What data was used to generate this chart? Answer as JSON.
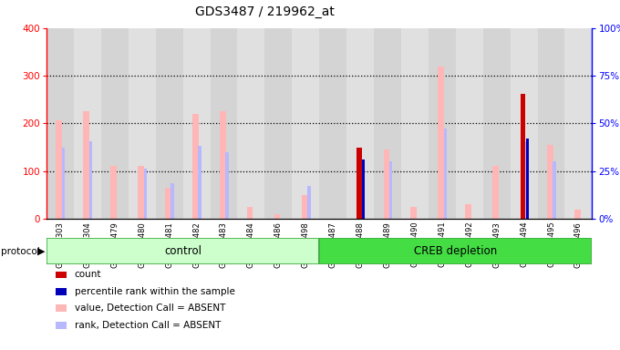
{
  "title": "GDS3487 / 219962_at",
  "samples": [
    "GSM304303",
    "GSM304304",
    "GSM304479",
    "GSM304480",
    "GSM304481",
    "GSM304482",
    "GSM304483",
    "GSM304484",
    "GSM304486",
    "GSM304498",
    "GSM304487",
    "GSM304488",
    "GSM304489",
    "GSM304490",
    "GSM304491",
    "GSM304492",
    "GSM304493",
    "GSM304494",
    "GSM304495",
    "GSM304496"
  ],
  "value_absent": [
    207,
    225,
    110,
    110,
    65,
    220,
    225,
    25,
    10,
    50,
    0,
    0,
    145,
    25,
    320,
    30,
    110,
    0,
    155,
    20
  ],
  "rank_absent": [
    150,
    162,
    0,
    105,
    75,
    152,
    140,
    0,
    0,
    68,
    0,
    0,
    120,
    0,
    190,
    0,
    0,
    160,
    120,
    0
  ],
  "count_red": [
    0,
    0,
    0,
    0,
    0,
    0,
    0,
    0,
    0,
    0,
    0,
    150,
    0,
    0,
    0,
    0,
    0,
    262,
    0,
    0
  ],
  "count_blue": [
    0,
    0,
    0,
    0,
    0,
    0,
    0,
    0,
    0,
    0,
    0,
    125,
    0,
    0,
    0,
    0,
    0,
    168,
    0,
    0
  ],
  "control_count": 10,
  "ylim_left": [
    0,
    400
  ],
  "ylim_right": [
    0,
    100
  ],
  "yticks_left": [
    0,
    100,
    200,
    300,
    400
  ],
  "yticks_right": [
    0,
    25,
    50,
    75,
    100
  ],
  "ytick_labels_right": [
    "0%",
    "25%",
    "50%",
    "75%",
    "100%"
  ],
  "pink": "#ffb6b6",
  "light_blue": "#b8b8ff",
  "dark_red": "#cc0000",
  "dark_blue": "#0000bb",
  "green_ctrl": "#ccffcc",
  "green_creb": "#44dd44",
  "col_bg_even": "#d4d4d4",
  "col_bg_odd": "#e0e0e0",
  "grid_yticks": [
    100,
    200,
    300
  ],
  "legend_items": [
    {
      "color": "#cc0000",
      "label": "count"
    },
    {
      "color": "#0000bb",
      "label": "percentile rank within the sample"
    },
    {
      "color": "#ffb6b6",
      "label": "value, Detection Call = ABSENT"
    },
    {
      "color": "#b8b8ff",
      "label": "rank, Detection Call = ABSENT"
    }
  ]
}
